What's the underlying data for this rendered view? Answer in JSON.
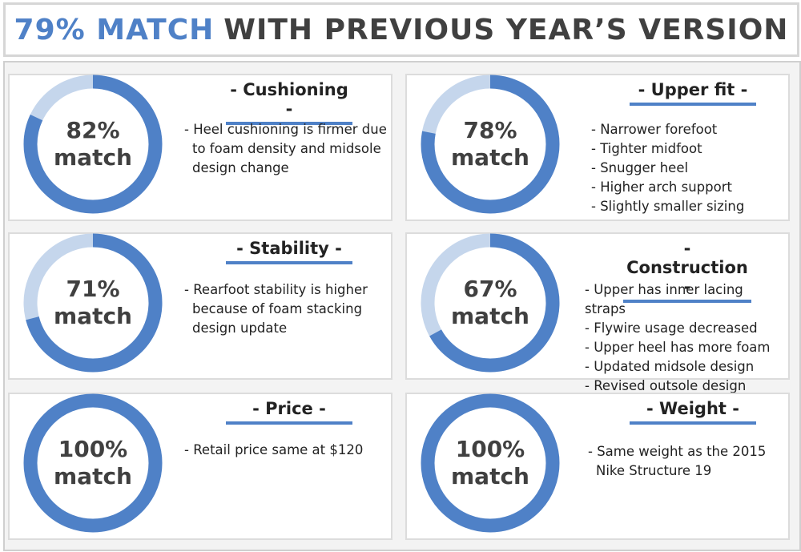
{
  "title": {
    "highlight": "79% MATCH",
    "rest": "WITH PREVIOUS YEAR’S VERSION"
  },
  "colors": {
    "accent": "#4f81c7",
    "accent_light": "#c5d6ec",
    "text": "#404040"
  },
  "chart_data": {
    "type": "donut",
    "title": "79% MATCH WITH PREVIOUS YEAR’S VERSION",
    "items": [
      {
        "category": "Cushioning",
        "percent": 82,
        "label_line1": "82%",
        "label_line2": "match",
        "notes": [
          "- Heel cushioning is firmer due",
          "to foam density and midsole",
          "design change"
        ]
      },
      {
        "category": "Upper fit",
        "percent": 78,
        "label_line1": "78%",
        "label_line2": "match",
        "notes": [
          "- Narrower forefoot",
          "- Tighter midfoot",
          "- Snugger heel",
          "- Higher arch support",
          "- Slightly smaller sizing"
        ]
      },
      {
        "category": "Stability",
        "percent": 71,
        "label_line1": "71%",
        "label_line2": "match",
        "notes": [
          "- Rearfoot stability is higher",
          "because of foam stacking",
          "design update"
        ]
      },
      {
        "category": "Construction",
        "percent": 67,
        "label_line1": "67%",
        "label_line2": "match",
        "notes": [
          "- Upper has inner lacing straps",
          "- Flywire usage decreased",
          "- Upper heel has more foam",
          "- Updated midsole design",
          "- Revised outsole design"
        ]
      },
      {
        "category": "Price",
        "percent": 100,
        "label_line1": "100%",
        "label_line2": "match",
        "notes": [
          "-  Retail price same at $120"
        ]
      },
      {
        "category": "Weight",
        "percent": 100,
        "label_line1": "100%",
        "label_line2": "match",
        "notes": [
          "- Same weight as the 2015",
          "Nike Structure 19"
        ]
      }
    ]
  },
  "headings": [
    "- Cushioning -",
    "- Upper fit -",
    "- Stability -",
    "- Construction -",
    "- Price -",
    "- Weight -"
  ]
}
